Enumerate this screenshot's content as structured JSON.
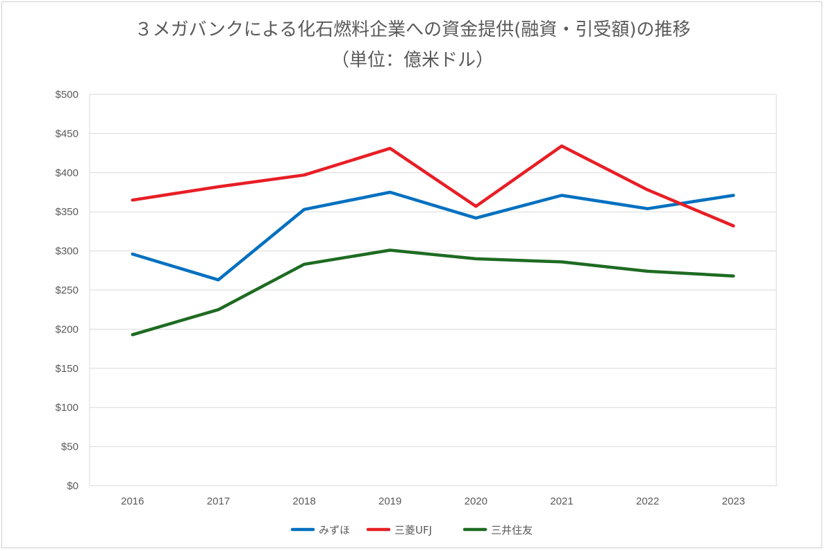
{
  "chart_data": {
    "type": "line",
    "title": "３メガバンクによる化石燃料企業への資金提供(融資・引受額)の推移",
    "subtitle": "（単位：億米ドル）",
    "xlabel": "",
    "ylabel": "",
    "categories": [
      "2016",
      "2017",
      "2018",
      "2019",
      "2020",
      "2021",
      "2022",
      "2023"
    ],
    "ylim": [
      0,
      500
    ],
    "y_ticks": [
      0,
      50,
      100,
      150,
      200,
      250,
      300,
      350,
      400,
      450,
      500
    ],
    "y_tick_labels": [
      "$0",
      "$50",
      "$100",
      "$150",
      "$200",
      "$250",
      "$300",
      "$350",
      "$400",
      "$450",
      "$500"
    ],
    "grid": true,
    "legend_position": "bottom",
    "series": [
      {
        "name": "みずほ",
        "color": "#0070C0",
        "values": [
          296,
          263,
          353,
          375,
          342,
          371,
          354,
          371
        ]
      },
      {
        "name": "三菱UFJ",
        "color": "#E81E25",
        "values": [
          365,
          382,
          397,
          431,
          357,
          434,
          378,
          332
        ]
      },
      {
        "name": "三井住友",
        "color": "#1E6B22",
        "values": [
          193,
          225,
          283,
          301,
          290,
          286,
          274,
          268
        ]
      }
    ]
  }
}
